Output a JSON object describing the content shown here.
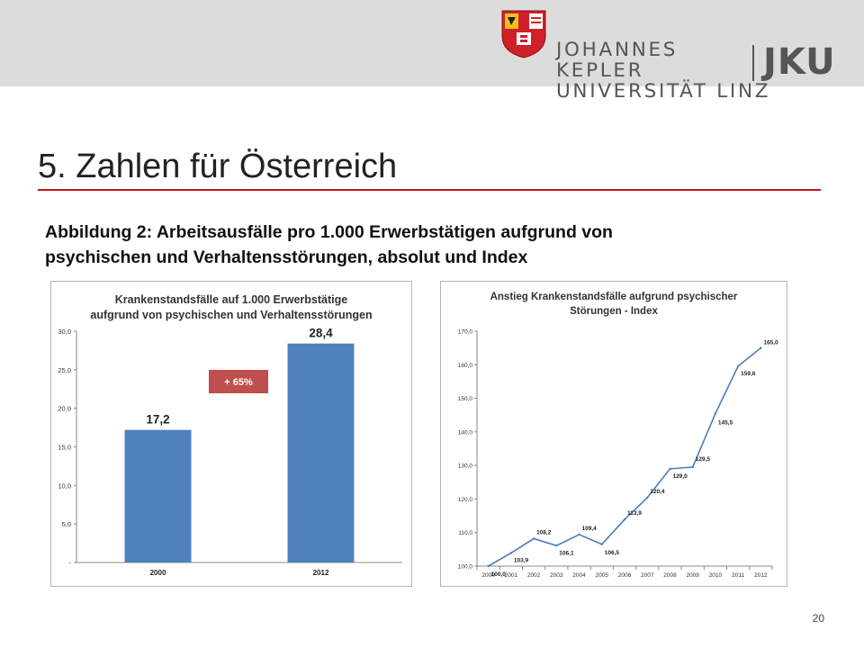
{
  "header": {
    "university_line1": "JOHANNES KEPLER",
    "university_line2": "UNIVERSITÄT LINZ",
    "university_abbr": "JKU"
  },
  "slide": {
    "title": "5. Zahlen für Österreich",
    "caption_line1": "Abbildung 2: Arbeitsausfälle pro 1.000 Erwerbstätigen aufgrund von",
    "caption_line2": "psychischen und Verhaltensstörungen, absolut und Index",
    "page_number": "20"
  },
  "colors": {
    "accent_red": "#c0141c",
    "bar_blue": "#4f81bd",
    "badge_red": "#c0504d",
    "line_blue": "#4a7ebb"
  },
  "chart_data": [
    {
      "type": "bar",
      "title_line1": "Krankenstandsfälle auf 1.000 Erwerbstätige",
      "title_line2": "aufgrund von psychischen und Verhaltensstörungen",
      "categories": [
        "2000",
        "2012"
      ],
      "values": [
        17.2,
        28.4
      ],
      "value_labels": [
        "17,2",
        "28,4"
      ],
      "ylim": [
        0,
        30
      ],
      "yticks": [
        0,
        5,
        10,
        15,
        20,
        25,
        30
      ],
      "ytick_labels": [
        "-",
        "5,0",
        "10,0",
        "15,0",
        "20,0",
        "25,0",
        "30,0"
      ],
      "annotation": "+ 65%",
      "xlabel": "",
      "ylabel": ""
    },
    {
      "type": "line",
      "title_line1": "Anstieg Krankenstandsfälle aufgrund psychischer",
      "title_line2": "Störungen - Index",
      "categories": [
        "2000",
        "2001",
        "2002",
        "2003",
        "2004",
        "2005",
        "2006",
        "2007",
        "2008",
        "2009",
        "2010",
        "2011",
        "2012"
      ],
      "values": [
        100.0,
        103.9,
        108.2,
        106.1,
        109.4,
        106.5,
        113.9,
        120.4,
        129.0,
        129.5,
        145.5,
        159.6,
        165.0
      ],
      "value_labels": [
        "100,0",
        "103,9",
        "108,2",
        "106,1",
        "109,4",
        "106,5",
        "113,9",
        "120,4",
        "129,0",
        "129,5",
        "145,5",
        "159,6",
        "165,0"
      ],
      "ylim": [
        100,
        170
      ],
      "yticks": [
        100,
        110,
        120,
        130,
        140,
        150,
        160,
        170
      ],
      "ytick_labels": [
        "100,0",
        "110,0",
        "120,0",
        "130,0",
        "140,0",
        "150,0",
        "160,0",
        "170,0"
      ],
      "xlabel": "",
      "ylabel": ""
    }
  ]
}
